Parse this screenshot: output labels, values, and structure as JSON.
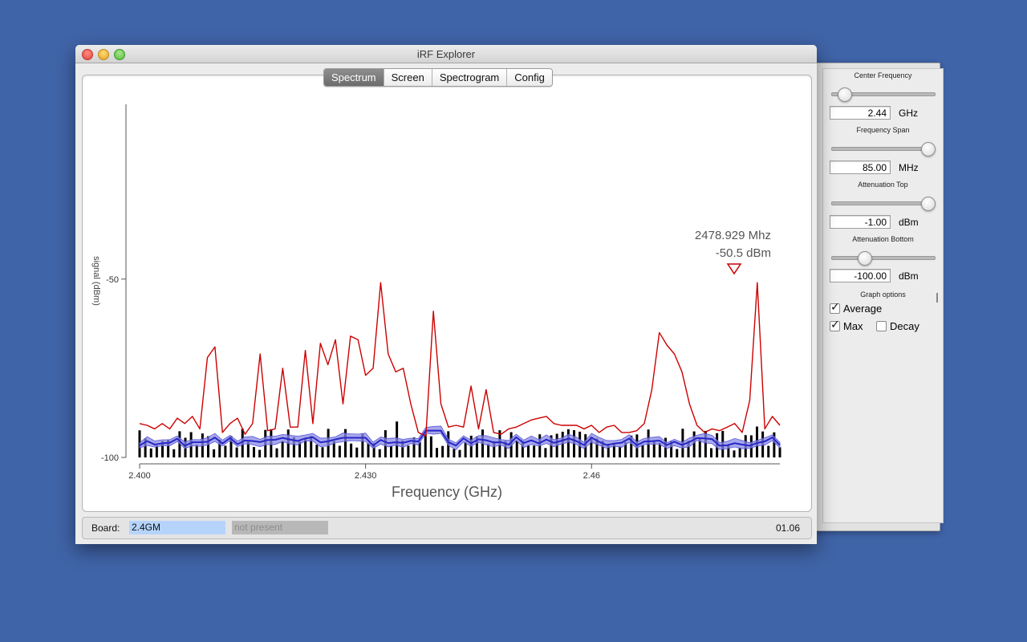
{
  "window": {
    "title": "iRF Explorer"
  },
  "tabs": [
    {
      "label": "Spectrum",
      "active": true
    },
    {
      "label": "Screen",
      "active": false
    },
    {
      "label": "Spectrogram",
      "active": false
    },
    {
      "label": "Config",
      "active": false
    }
  ],
  "controls": {
    "center_frequency": {
      "label": "Center Frequency",
      "value": "2.44",
      "unit": "GHz",
      "slider_position": 0.0
    },
    "frequency_span": {
      "label": "Frequency Span",
      "value": "85.00",
      "unit": "MHz",
      "slider_position": 1.0
    },
    "attenuation_top": {
      "label": "Attenuation Top",
      "value": "-1.00",
      "unit": "dBm",
      "slider_position": 1.0
    },
    "attenuation_bottom": {
      "label": "Attenuation Bottom",
      "value": "-100.00",
      "unit": "dBm",
      "slider_position": 0.2
    },
    "graph_options": {
      "label": "Graph options",
      "average": {
        "label": "Average",
        "checked": true
      },
      "max": {
        "label": "Max",
        "checked": true
      },
      "decay": {
        "label": "Decay",
        "checked": false
      }
    }
  },
  "status": {
    "board_label": "Board:",
    "board_value": "2.4GM",
    "state": "not present",
    "version": "01.06"
  },
  "chart_data": {
    "type": "line",
    "xlabel": "Frequency (GHz)",
    "ylabel": "signal (dBm)",
    "xlim": [
      2.4,
      2.485
    ],
    "ylim": [
      -100,
      -1
    ],
    "x_ticks": [
      {
        "value": 2.4,
        "label": "2.400"
      },
      {
        "value": 2.43,
        "label": "2.430"
      },
      {
        "value": 2.46,
        "label": "2.46"
      }
    ],
    "y_ticks": [
      {
        "value": -50,
        "label": "-50"
      },
      {
        "value": -100,
        "label": "-100"
      }
    ],
    "marker": {
      "freq_label": "2478.929 Mhz",
      "level_label": "-50.5 dBm",
      "x": 2.47893,
      "y": -50.5
    },
    "colors": {
      "max": "#cc0000",
      "average": "#2727c8",
      "average_band": "#8a8ae6",
      "bars": "#000000"
    },
    "series": [
      {
        "name": "Max",
        "x": [
          2.4,
          2.401,
          2.402,
          2.403,
          2.404,
          2.405,
          2.406,
          2.407,
          2.408,
          2.409,
          2.41,
          2.411,
          2.412,
          2.413,
          2.414,
          2.415,
          2.416,
          2.417,
          2.418,
          2.419,
          2.42,
          2.421,
          2.422,
          2.423,
          2.424,
          2.425,
          2.426,
          2.427,
          2.428,
          2.429,
          2.43,
          2.431,
          2.432,
          2.433,
          2.434,
          2.435,
          2.436,
          2.437,
          2.438,
          2.439,
          2.44,
          2.441,
          2.442,
          2.443,
          2.444,
          2.445,
          2.446,
          2.447,
          2.448,
          2.449,
          2.45,
          2.451,
          2.452,
          2.453,
          2.454,
          2.455,
          2.456,
          2.457,
          2.458,
          2.459,
          2.46,
          2.461,
          2.462,
          2.463,
          2.464,
          2.465,
          2.466,
          2.467,
          2.468,
          2.469,
          2.47,
          2.471,
          2.472,
          2.473,
          2.474,
          2.475,
          2.476,
          2.477,
          2.478,
          2.479,
          2.48,
          2.481,
          2.482,
          2.483,
          2.484,
          2.485
        ],
        "y": [
          -90.5,
          -91,
          -92,
          -90.5,
          -92,
          -89,
          -90.5,
          -88.5,
          -92,
          -72,
          -69,
          -93,
          -90.5,
          -89,
          -93.5,
          -90.5,
          -71,
          -92.5,
          -92,
          -75,
          -91.5,
          -91.5,
          -70,
          -90.5,
          -68,
          -74,
          -67,
          -85,
          -66,
          -67,
          -77,
          -75,
          -51,
          -71,
          -76,
          -75,
          -85,
          -93,
          -94,
          -59,
          -85,
          -91.5,
          -91,
          -91.5,
          -80,
          -92,
          -81,
          -93,
          -93.5,
          -92,
          -91.5,
          -90.5,
          -89.5,
          -89,
          -88.5,
          -90.5,
          -91,
          -91,
          -91,
          -92,
          -91,
          -93,
          -91.5,
          -91,
          -93,
          -93,
          -92.5,
          -90.5,
          -81,
          -65,
          -68.5,
          -71,
          -76,
          -85,
          -91,
          -93,
          -92,
          -92.5,
          -91.5,
          -90.5,
          -93,
          -84,
          -51,
          -92,
          -88.5,
          -91
        ]
      },
      {
        "name": "Average"
      }
    ]
  }
}
